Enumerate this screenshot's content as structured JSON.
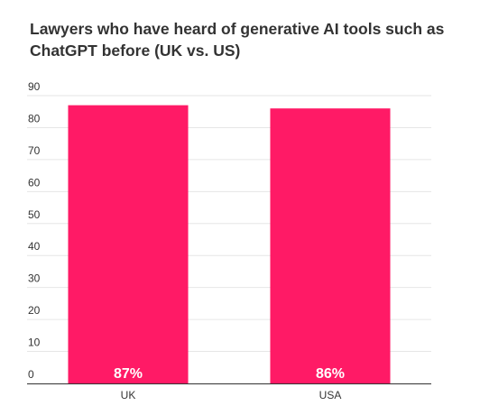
{
  "chart_data": {
    "type": "bar",
    "title": "Lawyers who have heard of generative AI tools such as ChatGPT before (UK vs. US)",
    "categories": [
      "UK",
      "USA"
    ],
    "values": [
      87,
      86
    ],
    "data_labels": [
      "87%",
      "86%"
    ],
    "ylim": [
      0,
      90
    ],
    "yticks": [
      0,
      10,
      20,
      30,
      40,
      50,
      60,
      70,
      80,
      90
    ],
    "ytick_labels": [
      "0",
      "10",
      "20",
      "30",
      "40",
      "50",
      "60",
      "70",
      "80",
      "90"
    ],
    "xlabel": "",
    "ylabel": "",
    "grid": true,
    "bar_color": "#ff1a66",
    "grid_color": "#e6e6e6",
    "axis_color": "#333333"
  }
}
